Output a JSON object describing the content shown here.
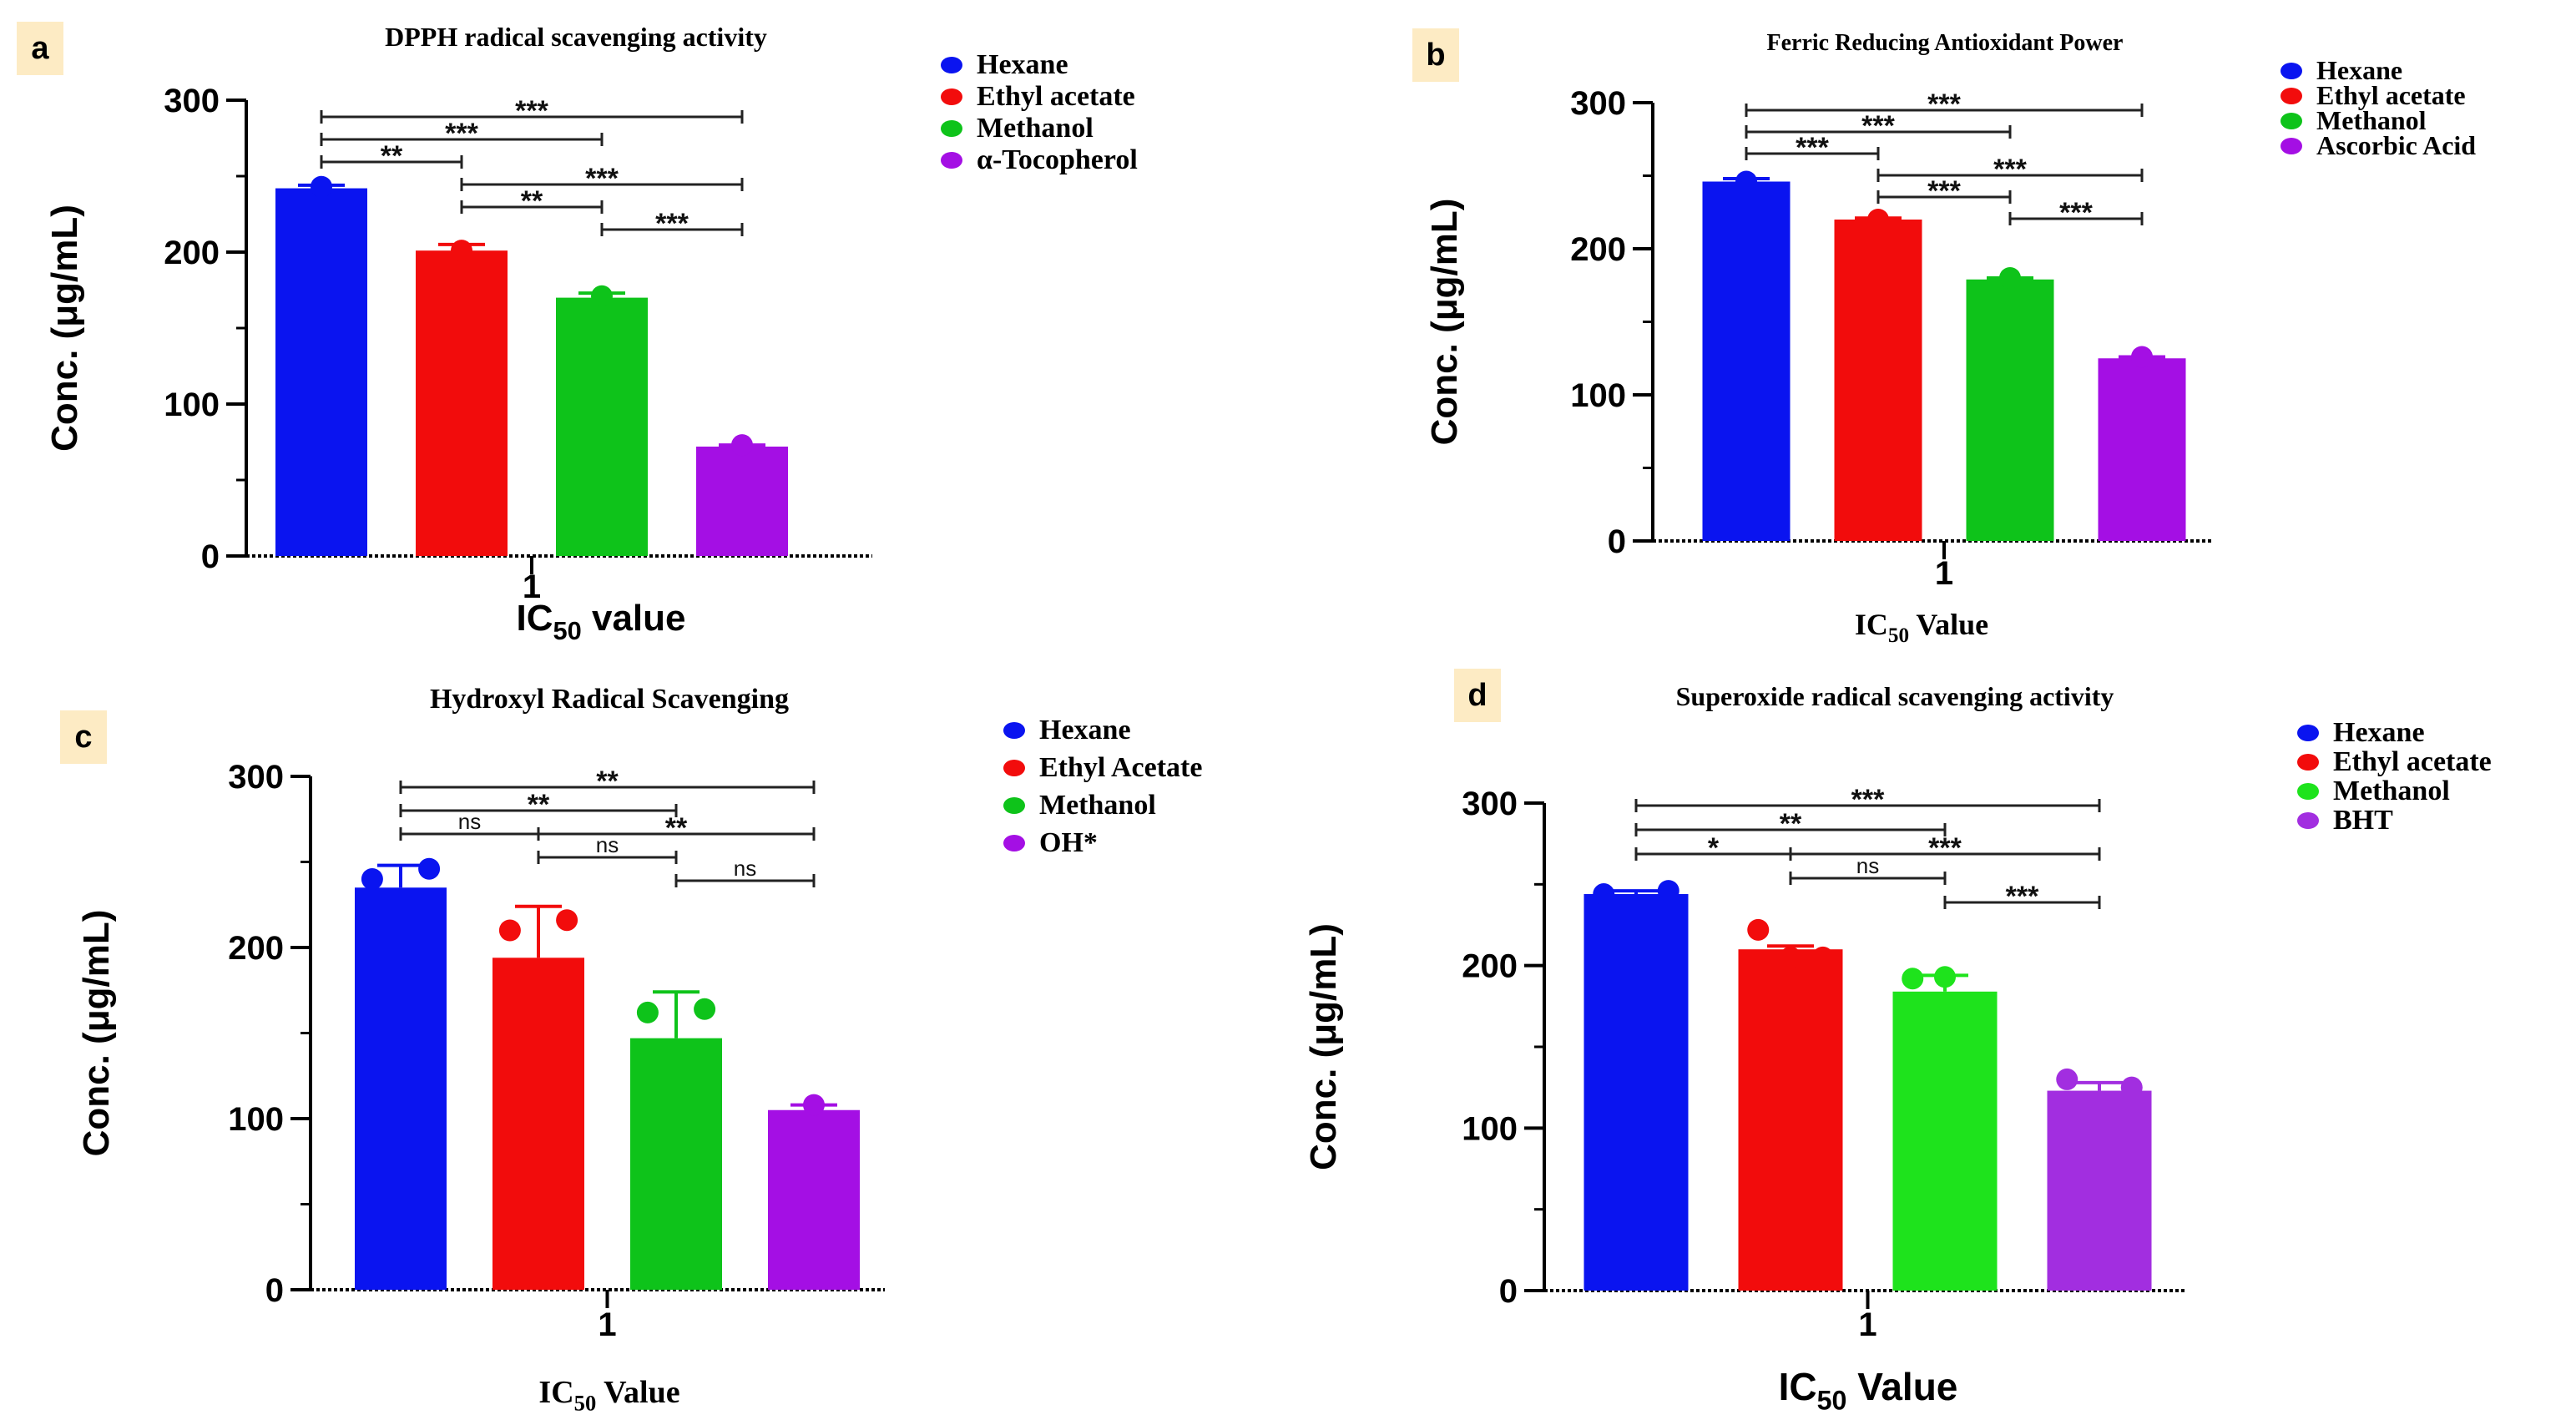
{
  "chart_data": [
    {
      "panel": "a",
      "type": "bar",
      "title": "DPPH radical scavenging activity",
      "ylabel": "Conc. (μg/mL)",
      "xlabel_main": "IC",
      "xlabel_sub": "50",
      "xlabel_rest": " value",
      "category": "1",
      "ylim": [
        0,
        300
      ],
      "yticks": [
        "0",
        "100",
        "200",
        "300"
      ],
      "series": [
        {
          "name": "Hexane",
          "value": 242,
          "error": 2,
          "color": "#0a14f0",
          "points": [
            243
          ]
        },
        {
          "name": "Ethyl acetate",
          "value": 201,
          "error": 4,
          "color": "#f20c0c",
          "points": [
            201
          ]
        },
        {
          "name": "Methanol",
          "value": 170,
          "error": 3,
          "color": "#0ec31a",
          "points": [
            171
          ]
        },
        {
          "name": "α-Tocopherol",
          "value": 72,
          "error": 1,
          "color": "#a40fe4",
          "points": [
            73
          ]
        }
      ],
      "significance": [
        {
          "from": 0,
          "to": 3,
          "level": 0,
          "label": "***"
        },
        {
          "from": 0,
          "to": 2,
          "level": 1,
          "label": "***"
        },
        {
          "from": 0,
          "to": 1,
          "level": 2,
          "label": "**"
        },
        {
          "from": 1,
          "to": 3,
          "level": 3,
          "label": "***"
        },
        {
          "from": 1,
          "to": 2,
          "level": 4,
          "label": "**"
        },
        {
          "from": 2,
          "to": 3,
          "level": 5,
          "label": "***"
        }
      ]
    },
    {
      "panel": "b",
      "type": "bar",
      "title": "Ferric Reducing Antioxidant Power",
      "ylabel": "Conc. (μg/mL)",
      "xlabel_main": "IC",
      "xlabel_sub": "50",
      "xlabel_rest": " Value",
      "category": "1",
      "ylim": [
        0,
        300
      ],
      "yticks": [
        "0",
        "100",
        "200",
        "300"
      ],
      "series": [
        {
          "name": "Hexane",
          "value": 246,
          "error": 2,
          "color": "#0a14f0",
          "points": [
            246
          ]
        },
        {
          "name": "Ethyl acetate",
          "value": 220,
          "error": 1,
          "color": "#f20c0c",
          "points": [
            220
          ]
        },
        {
          "name": "Methanol",
          "value": 179,
          "error": 1,
          "color": "#0ec31a",
          "points": [
            180
          ]
        },
        {
          "name": "Ascorbic Acid",
          "value": 125,
          "error": 1,
          "color": "#a40fe4",
          "points": [
            126
          ]
        }
      ],
      "significance": [
        {
          "from": 0,
          "to": 3,
          "level": 0,
          "label": "***"
        },
        {
          "from": 0,
          "to": 2,
          "level": 1,
          "label": "***"
        },
        {
          "from": 0,
          "to": 1,
          "level": 2,
          "label": "***"
        },
        {
          "from": 1,
          "to": 3,
          "level": 3,
          "label": "***"
        },
        {
          "from": 1,
          "to": 2,
          "level": 4,
          "label": "***"
        },
        {
          "from": 2,
          "to": 3,
          "level": 5,
          "label": "***"
        }
      ]
    },
    {
      "panel": "c",
      "type": "bar",
      "title": "Hydroxyl Radical Scavenging",
      "ylabel": "Conc. (μg/mL)",
      "xlabel_main": "IC",
      "xlabel_sub": "50",
      "xlabel_rest": " Value",
      "category": "1",
      "ylim": [
        0,
        300
      ],
      "yticks": [
        "0",
        "100",
        "200",
        "300"
      ],
      "series": [
        {
          "name": "Hexane",
          "value": 235,
          "error": 13,
          "color": "#0a14f0",
          "points": [
            240,
            246
          ]
        },
        {
          "name": "Ethyl Acetate",
          "value": 194,
          "error": 30,
          "color": "#f20c0c",
          "points": [
            210,
            216
          ]
        },
        {
          "name": "Methanol",
          "value": 147,
          "error": 27,
          "color": "#0ec31a",
          "points": [
            162,
            164
          ]
        },
        {
          "name": "OH*",
          "value": 105,
          "error": 3,
          "color": "#a40fe4",
          "points": [
            108
          ]
        }
      ],
      "significance": [
        {
          "from": 0,
          "to": 3,
          "level": 0,
          "label": "**"
        },
        {
          "from": 0,
          "to": 2,
          "level": 1,
          "label": "**"
        },
        {
          "from": 0,
          "to": 1,
          "level": 2,
          "label": "ns"
        },
        {
          "from": 1,
          "to": 3,
          "level": 2,
          "label": "**"
        },
        {
          "from": 1,
          "to": 2,
          "level": 3,
          "label": "ns"
        },
        {
          "from": 2,
          "to": 3,
          "level": 4,
          "label": "ns"
        }
      ]
    },
    {
      "panel": "d",
      "type": "bar",
      "title": "Superoxide radical scavenging activity",
      "ylabel": "Conc. (μg/mL)",
      "xlabel_main": "IC",
      "xlabel_sub": "50",
      "xlabel_rest": " Value",
      "category": "1",
      "ylim": [
        0,
        300
      ],
      "yticks": [
        "0",
        "100",
        "200",
        "300"
      ],
      "series": [
        {
          "name": "Hexane",
          "value": 244,
          "error": 2,
          "color": "#0a14f0",
          "points": [
            244,
            246
          ]
        },
        {
          "name": "Ethyl acetate",
          "value": 210,
          "error": 2,
          "color": "#f20c0c",
          "points": [
            222,
            205,
            205
          ]
        },
        {
          "name": "Methanol",
          "value": 184,
          "error": 10,
          "color": "#1ee31c",
          "points": [
            192,
            193,
            175
          ]
        },
        {
          "name": "BHT",
          "value": 123,
          "error": 5,
          "color": "#a22ee0",
          "points": [
            130,
            125
          ]
        }
      ],
      "significance": [
        {
          "from": 0,
          "to": 3,
          "level": 0,
          "label": "***"
        },
        {
          "from": 0,
          "to": 2,
          "level": 1,
          "label": "**"
        },
        {
          "from": 0,
          "to": 1,
          "level": 2,
          "label": "*"
        },
        {
          "from": 1,
          "to": 3,
          "level": 2,
          "label": "***"
        },
        {
          "from": 1,
          "to": 2,
          "level": 3,
          "label": "ns"
        },
        {
          "from": 2,
          "to": 3,
          "level": 4,
          "label": "***"
        }
      ]
    }
  ]
}
